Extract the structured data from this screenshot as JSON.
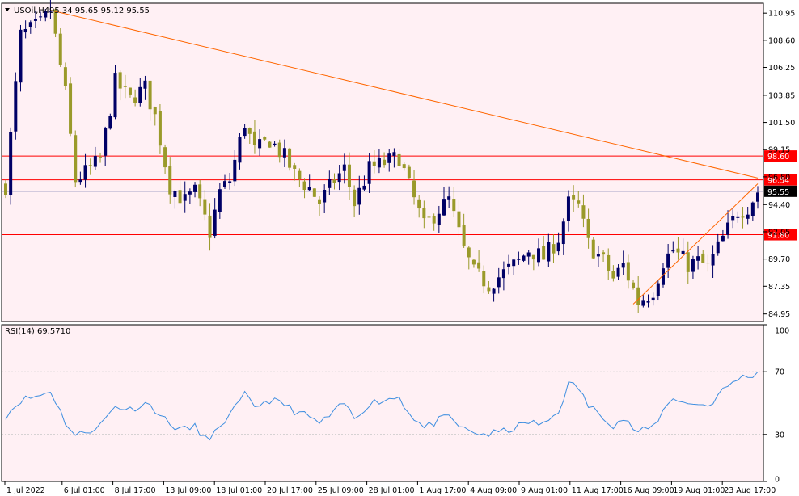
{
  "chart_data": {
    "type": "candlestick",
    "symbol": "USOil,H4",
    "ohlc_header": "95.34 95.65 95.12 95.55",
    "price_axis": {
      "ylim": [
        84.3,
        111.8
      ],
      "ticks": [
        "110.95",
        "108.60",
        "106.25",
        "103.85",
        "101.50",
        "99.15",
        "96.80",
        "94.40",
        "92.05",
        "89.70",
        "87.35",
        "84.95"
      ]
    },
    "time_axis_labels": [
      "1 Jul 2022",
      "6 Jul 01:00",
      "8 Jul 17:00",
      "13 Jul 09:00",
      "18 Jul 01:00",
      "20 Jul 17:00",
      "25 Jul 09:00",
      "28 Jul 01:00",
      "1 Aug 17:00",
      "4 Aug 09:00",
      "9 Aug 01:00",
      "11 Aug 17:00",
      "16 Aug 09:00",
      "19 Aug 01:00",
      "23 Aug 17:00"
    ],
    "price_path": [
      [
        0,
        96
      ],
      [
        3,
        109
      ],
      [
        7,
        110
      ],
      [
        9,
        111.2
      ],
      [
        12,
        104
      ],
      [
        14,
        96.5
      ],
      [
        17,
        97.5
      ],
      [
        19,
        98.3
      ],
      [
        22,
        105
      ],
      [
        25,
        103.5
      ],
      [
        28,
        104.5
      ],
      [
        30,
        102
      ],
      [
        33,
        96
      ],
      [
        36,
        94.7
      ],
      [
        38,
        95.5
      ],
      [
        41,
        92
      ],
      [
        43,
        95.5
      ],
      [
        45,
        96.5
      ],
      [
        48,
        101.5
      ],
      [
        50,
        99
      ],
      [
        53,
        100
      ],
      [
        56,
        98.5
      ],
      [
        58,
        97
      ],
      [
        61,
        95.8
      ],
      [
        63,
        94.6
      ],
      [
        66,
        96.5
      ],
      [
        68,
        97.5
      ],
      [
        70,
        94.5
      ],
      [
        73,
        97.5
      ],
      [
        76,
        98
      ],
      [
        79,
        98.5
      ],
      [
        81,
        96
      ],
      [
        84,
        92.5
      ],
      [
        87,
        94
      ],
      [
        89,
        94.8
      ],
      [
        92,
        90.5
      ],
      [
        94,
        88.5
      ],
      [
        97,
        87.5
      ],
      [
        100,
        88.5
      ],
      [
        103,
        89.5
      ],
      [
        105,
        90.5
      ],
      [
        108,
        89.8
      ],
      [
        111,
        91.5
      ],
      [
        113,
        94.5
      ],
      [
        115,
        94.2
      ],
      [
        117,
        91
      ],
      [
        120,
        89.5
      ],
      [
        122,
        88
      ],
      [
        124,
        89.2
      ],
      [
        127,
        86
      ],
      [
        130,
        87
      ],
      [
        132,
        89.5
      ],
      [
        134,
        90.5
      ],
      [
        137,
        89.2
      ],
      [
        139,
        89.5
      ],
      [
        141,
        89
      ],
      [
        144,
        91.5
      ],
      [
        147,
        93.8
      ],
      [
        149,
        94.2
      ],
      [
        151,
        95.55
      ]
    ],
    "rsi_path": [
      [
        0,
        42
      ],
      [
        3,
        52
      ],
      [
        7,
        55
      ],
      [
        9,
        58
      ],
      [
        12,
        38
      ],
      [
        14,
        29
      ],
      [
        17,
        33
      ],
      [
        19,
        36
      ],
      [
        22,
        48
      ],
      [
        25,
        46
      ],
      [
        28,
        50
      ],
      [
        30,
        46
      ],
      [
        33,
        36
      ],
      [
        36,
        33
      ],
      [
        38,
        35
      ],
      [
        41,
        25
      ],
      [
        43,
        36
      ],
      [
        45,
        42
      ],
      [
        48,
        55
      ],
      [
        50,
        48
      ],
      [
        53,
        52
      ],
      [
        56,
        49
      ],
      [
        58,
        45
      ],
      [
        61,
        41
      ],
      [
        63,
        37
      ],
      [
        66,
        44
      ],
      [
        68,
        50
      ],
      [
        70,
        40
      ],
      [
        73,
        50
      ],
      [
        76,
        52
      ],
      [
        79,
        54
      ],
      [
        81,
        44
      ],
      [
        84,
        34
      ],
      [
        87,
        39
      ],
      [
        89,
        41
      ],
      [
        92,
        33
      ],
      [
        94,
        31
      ],
      [
        97,
        30
      ],
      [
        100,
        32
      ],
      [
        103,
        35
      ],
      [
        105,
        38
      ],
      [
        108,
        36
      ],
      [
        111,
        45
      ],
      [
        113,
        62
      ],
      [
        115,
        60
      ],
      [
        117,
        48
      ],
      [
        120,
        42
      ],
      [
        122,
        36
      ],
      [
        124,
        40
      ],
      [
        127,
        31
      ],
      [
        130,
        35
      ],
      [
        132,
        45
      ],
      [
        134,
        54
      ],
      [
        137,
        49
      ],
      [
        139,
        50
      ],
      [
        141,
        48
      ],
      [
        144,
        58
      ],
      [
        147,
        66
      ],
      [
        149,
        67
      ],
      [
        151,
        69.571
      ]
    ],
    "bars": 152,
    "levels": [
      {
        "price": 98.6,
        "label": "98.60",
        "color": "#ff0000"
      },
      {
        "price": 96.54,
        "label": "96.54",
        "color": "#ff0000"
      },
      {
        "price": 91.8,
        "label": "91.80",
        "color": "#ff0000"
      }
    ],
    "current_price": {
      "price": 95.55,
      "label": "95.55"
    },
    "trendlines": [
      {
        "from": [
          9,
          111.2
        ],
        "to": [
          151,
          96.7
        ],
        "color": "#ff6600"
      },
      {
        "from": [
          126,
          85.8
        ],
        "to": [
          151,
          96.2
        ],
        "color": "#ff6600"
      }
    ],
    "rsi": {
      "label": "RSI(14) 69.5710",
      "ylim": [
        0,
        100
      ],
      "ticks": [
        "100",
        "70",
        "30",
        "0"
      ],
      "levels": [
        70,
        30
      ]
    },
    "colors": {
      "background": "#fff0f4",
      "bull": "#000066",
      "bear": "#9a9a2a",
      "rsi_line": "#3d8ee0"
    }
  }
}
